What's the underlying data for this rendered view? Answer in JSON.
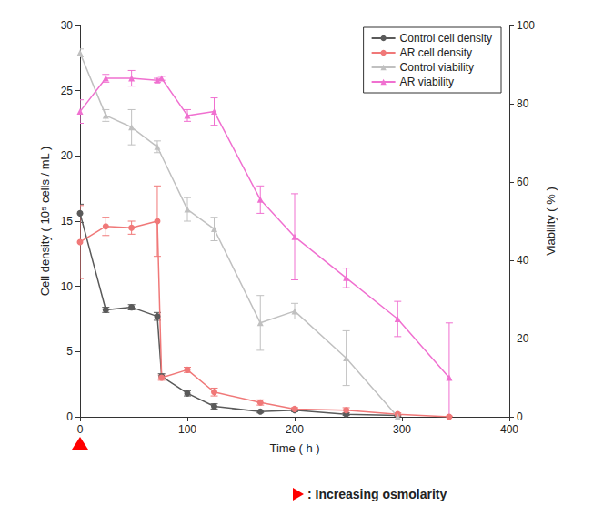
{
  "chart_data": {
    "type": "line",
    "x_label": "Time ( h )",
    "y_label": "Cell density ( 10⁵ cells / mL )",
    "y2_label": "Viability ( % )",
    "xlim": [
      0,
      400
    ],
    "xticks": [
      0,
      100,
      200,
      300,
      400
    ],
    "ylim": [
      0,
      30
    ],
    "yticks": [
      0,
      5,
      10,
      15,
      20,
      25,
      30
    ],
    "y2lim": [
      0,
      100
    ],
    "y2ticks": [
      0,
      20,
      40,
      60,
      80,
      100
    ],
    "grid": false,
    "legend": "upper right",
    "series": [
      {
        "name": "Control cell density",
        "color": "#5a5a5a",
        "marker": "circle",
        "line_style": "solid",
        "x": [
          0,
          24,
          48,
          72,
          76,
          100,
          125,
          168,
          200,
          248,
          296
        ],
        "values": [
          15.6,
          8.2,
          8.4,
          7.7,
          3.1,
          1.8,
          0.8,
          0.4,
          0.5,
          0.2,
          0.1
        ],
        "errors": [
          0.7,
          0.2,
          0.2,
          0.3,
          0.2,
          0.2,
          0.2,
          0.1,
          0.1,
          0.1,
          0.05
        ]
      },
      {
        "name": "AR cell density",
        "color": "#f07878",
        "marker": "circle",
        "line_style": "solid",
        "x": [
          0,
          24,
          48,
          72,
          76,
          100,
          125,
          168,
          200,
          248,
          296,
          344
        ],
        "values": [
          13.4,
          14.6,
          14.5,
          15.0,
          3.0,
          3.6,
          1.9,
          1.1,
          0.6,
          0.5,
          0.2,
          0.0
        ],
        "errors": [
          2.8,
          0.7,
          0.5,
          2.7,
          0.2,
          0.2,
          0.3,
          0.2,
          0.1,
          0.2,
          0.1,
          0.05
        ]
      },
      {
        "name": "Control viability",
        "color": "#c0c0c0",
        "marker": "triangle",
        "line_style": "solid",
        "axis": "y2",
        "x": [
          0,
          24,
          48,
          72,
          100,
          125,
          168,
          200,
          248,
          296
        ],
        "values": [
          93,
          77,
          74,
          69,
          53,
          48,
          24,
          27,
          15,
          0
        ],
        "errors": [
          1,
          1.5,
          4.5,
          1.5,
          3,
          3,
          7,
          2,
          7,
          0.5
        ]
      },
      {
        "name": "AR viability",
        "color": "#f070d0",
        "marker": "triangle",
        "line_style": "solid",
        "axis": "y2",
        "x": [
          0,
          24,
          48,
          72,
          76,
          100,
          125,
          168,
          200,
          248,
          296,
          344
        ],
        "values": [
          78,
          86.5,
          86.5,
          86,
          86.5,
          77,
          78,
          55.5,
          46,
          35.5,
          25,
          10
        ],
        "errors": [
          3,
          1,
          2,
          0.5,
          0.5,
          1.5,
          3.5,
          3.5,
          11,
          2.5,
          4.5,
          14
        ]
      }
    ],
    "annotation": {
      "text": ": Increasing osmolarity",
      "x": 0,
      "color": "#ff0000"
    }
  }
}
